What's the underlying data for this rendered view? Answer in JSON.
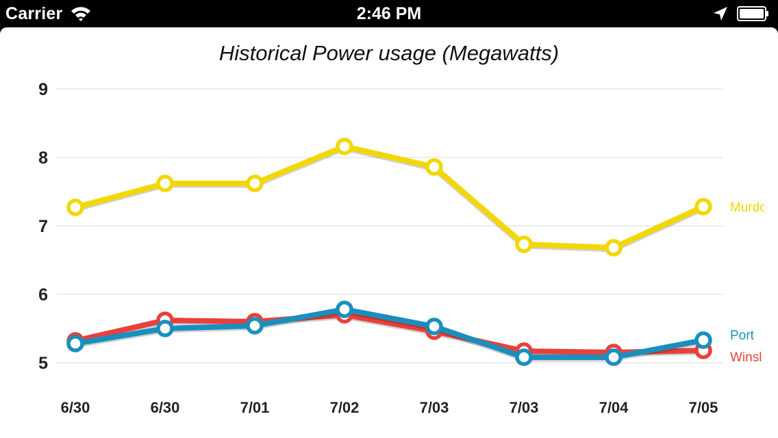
{
  "status_bar": {
    "carrier": "Carrier",
    "time": "2:46 PM",
    "icons": [
      "wifi-icon",
      "location-arrow-icon",
      "battery-icon"
    ]
  },
  "chart_data": {
    "type": "line",
    "title": "Historical Power usage (Megawatts)",
    "xlabel": "",
    "ylabel": "",
    "ylim": [
      5,
      9
    ],
    "yticks": [
      5,
      6,
      7,
      8,
      9
    ],
    "grid": true,
    "categories": [
      "6/30",
      "6/30",
      "7/01",
      "7/02",
      "7/03",
      "7/03",
      "7/04",
      "7/05"
    ],
    "series": [
      {
        "name": "Murdo",
        "color": "#f2d700",
        "values": [
          7.27,
          7.62,
          7.62,
          8.16,
          7.86,
          6.73,
          6.68,
          7.28
        ]
      },
      {
        "name": "Winsl",
        "color": "#e8403c",
        "values": [
          5.32,
          5.62,
          5.6,
          5.7,
          5.46,
          5.17,
          5.15,
          5.18
        ]
      },
      {
        "name": "Port",
        "color": "#1a8fbd",
        "values": [
          5.28,
          5.5,
          5.54,
          5.78,
          5.53,
          5.08,
          5.08,
          5.33
        ]
      }
    ]
  }
}
